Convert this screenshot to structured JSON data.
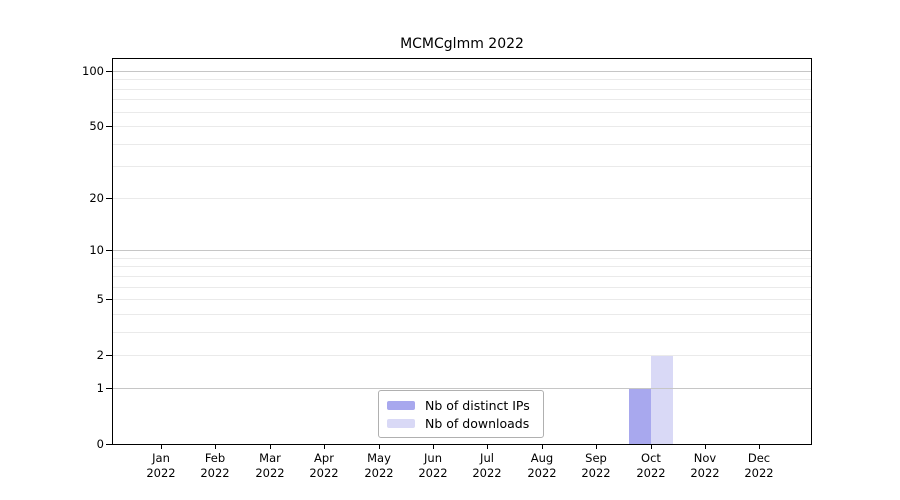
{
  "chart_data": {
    "type": "bar",
    "title": "MCMCglmm 2022",
    "x_year": "2022",
    "categories": [
      "Jan",
      "Feb",
      "Mar",
      "Apr",
      "May",
      "Jun",
      "Jul",
      "Aug",
      "Sep",
      "Oct",
      "Nov",
      "Dec"
    ],
    "series": [
      {
        "name": "Nb of distinct IPs",
        "color": "#a8a8ee",
        "values": [
          0,
          0,
          0,
          0,
          0,
          0,
          0,
          0,
          0,
          1,
          0,
          0
        ]
      },
      {
        "name": "Nb of downloads",
        "color": "#d9d9f6",
        "values": [
          0,
          0,
          0,
          0,
          0,
          0,
          0,
          0,
          0,
          2,
          0,
          0
        ]
      }
    ],
    "y_axis": {
      "scale": "log1p",
      "range": [
        0,
        100
      ],
      "tick_values": [
        0,
        1,
        2,
        5,
        10,
        20,
        50,
        100
      ],
      "major_gridline_values": [
        1,
        10,
        100
      ],
      "minor_gridline_values": [
        2,
        3,
        4,
        5,
        6,
        7,
        8,
        9,
        20,
        30,
        40,
        50,
        60,
        70,
        80,
        90
      ]
    },
    "legend": {
      "position": "inside-bottom-center",
      "entries": [
        "Nb of distinct IPs",
        "Nb of downloads"
      ]
    },
    "grid": "horizontal-only",
    "colors": {
      "major_gridline": "#c6c6c6",
      "minor_gridline": "#eaeaea",
      "axis": "#000000",
      "background": "#ffffff"
    }
  }
}
